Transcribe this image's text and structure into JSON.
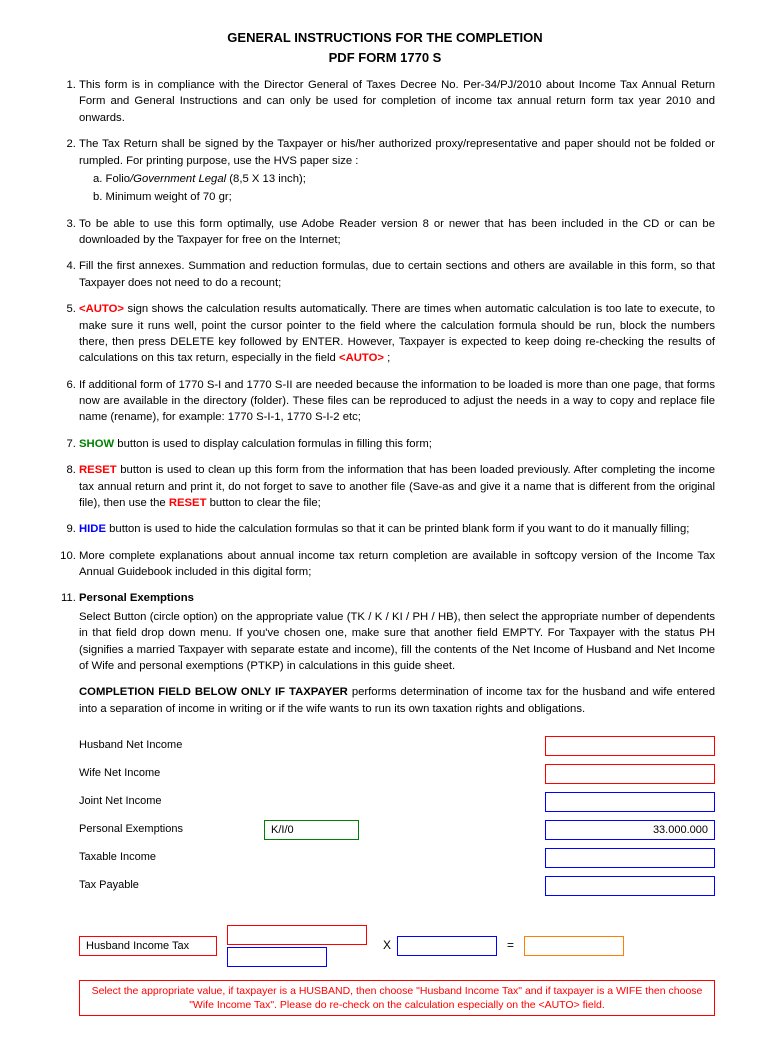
{
  "title_line1": "GENERAL INSTRUCTIONS FOR THE COMPLETION",
  "title_line2": "PDF FORM 1770 S",
  "items": {
    "i1": "This form is in compliance with the Director General of Taxes Decree No. Per-34/PJ/2010 about Income Tax Annual Return Form and General Instructions and can only be used for completion of income tax annual return form tax year 2010 and onwards.",
    "i2": "The Tax Return shall be signed by the Taxpayer or his/her authorized proxy/representative and paper should not be folded or rumpled. For printing purpose, use the HVS paper size :",
    "i2a": "a.  Folio",
    "i2a_italic": "/Government Legal",
    "i2a_tail": " (8,5 X 13 inch);",
    "i2b": "b.  Minimum weight of 70 gr;",
    "i3": "To be able to use this form optimally, use Adobe Reader version 8 or newer that has been included in the CD or can be downloaded by the Taxpayer for free on the Internet;",
    "i4": "Fill the first annexes. Summation and reduction formulas,  due to certain sections and others are available in this form, so that Taxpayer does not need to do a recount;",
    "i5_auto": "<AUTO>",
    "i5": " sign shows the calculation results automatically. There are times when automatic calculation is too late to execute, to make sure it runs well, point the cursor pointer to the field where the calculation formula should be run, block the numbers there, then press DELETE key followed by ENTER. However, Taxpayer is expected to keep doing re-checking the results of calculations on this tax return, especially in the field ",
    "i5_tail": " ;",
    "i6": "If additional form of 1770 S-I and 1770 S-II are needed because the information to be loaded is more than one page, that forms now are available in the directory (folder). These files can be reproduced to adjust the needs in a way to copy and replace file name (rename), for example: 1770 S-I-1, 1770 S-I-2 etc;",
    "i7_show": "SHOW",
    "i7": " button is used to display calculation formulas in filling this form;",
    "i8_reset": "RESET",
    "i8a": " button is used to clean up this form from the information that has been loaded previously. After completing the income tax annual return and print it, do not forget to save to another file (Save-as and give it a name that is different from the original file), then use the ",
    "i8b": " button to clear the file;",
    "i9_hide": "HIDE",
    "i9": " button is used to hide the calculation formulas so that it can be printed blank form if you want to do it manually filling;",
    "i10": "More complete explanations about annual income tax return completion are available in softcopy version of the Income Tax Annual Guidebook included in this digital form;",
    "i11_title": "Personal Exemptions",
    "i11_body": "Select Button (circle option) on the appropriate value (TK / K / KI / PH / HB), then select the appropriate number of dependents in that field drop down menu.  If you've chosen one, make sure that another field EMPTY. For Taxpayer with the status PH (signifies a married Taxpayer with separate estate and income), fill the contents of the Net Income of Husband and Net Income of Wife and personal exemptions (PTKP) in calculations in this guide sheet.",
    "i11_comp_bold": "COMPLETION FIELD BELOW ONLY IF TAXPAYER",
    "i11_comp_rest": " performs determination of income tax for the husband and wife entered into a separation of income in writing or if the wife wants to run its own taxation rights and obligations."
  },
  "fields": {
    "f1": "Husband Net Income",
    "f2": "Wife Net Income",
    "f3": "Joint Net Income",
    "f4": "Personal Exemptions",
    "f4_val1": "K/I/0",
    "f4_val2": "33.000.000",
    "f5": "Taxable Income",
    "f6": "Tax Payable"
  },
  "formula": {
    "label": "Husband Income Tax",
    "times": "X",
    "eq": "="
  },
  "footer": "Select the appropriate value, if taxpayer is a HUSBAND, then choose \"Husband Income Tax\" and if taxpayer is a WIFE then choose \"Wife Income Tax\". Please do re-check on the calculation especially on the <AUTO> field.",
  "colors": {
    "red": "#ff0000",
    "green": "#008000",
    "blue": "#0000ff",
    "orange": "#ff7f00"
  }
}
